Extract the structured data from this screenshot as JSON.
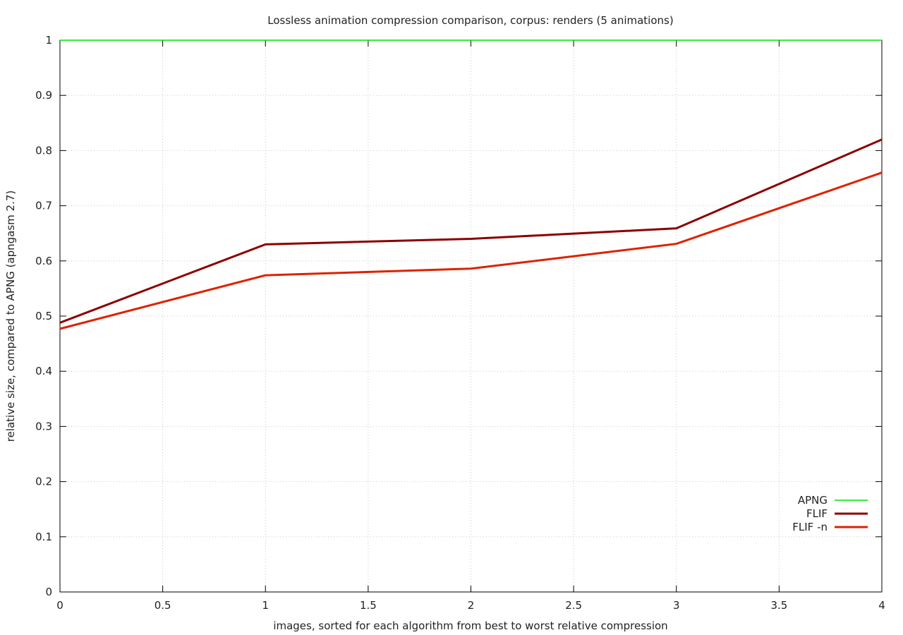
{
  "chart_data": {
    "type": "line",
    "title": "Lossless animation compression comparison, corpus: renders (5 animations)",
    "xlabel": "images, sorted for each algorithm from best to worst relative compression",
    "ylabel": "relative size, compared to APNG (apngasm 2.7)",
    "xlim": [
      0,
      4
    ],
    "ylim": [
      0,
      1
    ],
    "x_ticks": [
      0,
      0.5,
      1,
      1.5,
      2,
      2.5,
      3,
      3.5,
      4
    ],
    "x_tick_labels": [
      "0",
      "0.5",
      "1",
      "1.5",
      "2",
      "2.5",
      "3",
      "3.5",
      "4"
    ],
    "y_ticks": [
      0,
      0.1,
      0.2,
      0.3,
      0.4,
      0.5,
      0.6,
      0.7,
      0.8,
      0.9,
      1
    ],
    "y_tick_labels": [
      "0",
      "0.1",
      "0.2",
      "0.3",
      "0.4",
      "0.5",
      "0.6",
      "0.7",
      "0.8",
      "0.9",
      "1"
    ],
    "grid": true,
    "legend_position": "bottom-right",
    "x": [
      0,
      1,
      2,
      3,
      4
    ],
    "series": [
      {
        "name": "APNG",
        "color": "#00e000",
        "values": [
          1,
          1,
          1,
          1,
          1
        ]
      },
      {
        "name": "FLIF",
        "color": "#8b0000",
        "values": [
          0.488,
          0.63,
          0.64,
          0.659,
          0.82
        ]
      },
      {
        "name": "FLIF -n",
        "color": "#dd2200",
        "values": [
          0.477,
          0.574,
          0.586,
          0.631,
          0.76
        ]
      }
    ]
  }
}
